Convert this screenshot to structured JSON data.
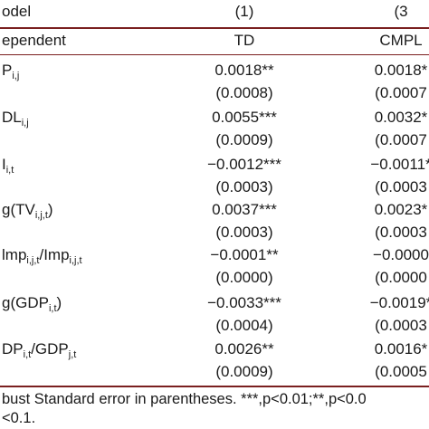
{
  "table": {
    "header": [
      "odel",
      "(1)",
      "(3"
    ],
    "subheader": [
      "ependent",
      "TD",
      "CMPL"
    ],
    "rows": [
      {
        "label": [
          {
            "t": "P"
          },
          {
            "s": "i,j"
          }
        ],
        "coef": [
          "0.0018**",
          "0.0018*"
        ],
        "se": [
          "(0.0008)",
          "(0.0007"
        ]
      },
      {
        "label": [
          {
            "t": "DL"
          },
          {
            "s": "i,j"
          }
        ],
        "coef": [
          "0.0055***",
          "0.0032*"
        ],
        "se": [
          "(0.0009)",
          "(0.0007"
        ]
      },
      {
        "label": [
          {
            "t": "I"
          },
          {
            "s": "i,t"
          }
        ],
        "coef": [
          "−0.0012***",
          "−0.0011*"
        ],
        "se": [
          "(0.0003)",
          "(0.0003"
        ]
      },
      {
        "label": [
          {
            "t": "g(TV"
          },
          {
            "s": "i,j,t"
          },
          {
            "t": ")"
          }
        ],
        "coef": [
          "0.0037***",
          "0.0023*"
        ],
        "se": [
          "(0.0003)",
          "(0.0003"
        ]
      },
      {
        "label": [
          {
            "t": "lmp"
          },
          {
            "s": "i,j,t"
          },
          {
            "t": "/Imp"
          },
          {
            "s": "i,j,t"
          }
        ],
        "coef": [
          "−0.0001**",
          "−0.0000"
        ],
        "se": [
          "(0.0000)",
          "(0.0000"
        ]
      },
      {
        "label": [
          {
            "t": "g(GDP"
          },
          {
            "s": "i,t"
          },
          {
            "t": ")"
          }
        ],
        "coef": [
          "−0.0033***",
          "−0.0019*"
        ],
        "se": [
          "(0.0004)",
          "(0.0003"
        ]
      },
      {
        "label": [
          {
            "t": "DP"
          },
          {
            "s": "i,t"
          },
          {
            "t": "/GDP"
          },
          {
            "s": "j,t"
          }
        ],
        "coef": [
          "0.0026**",
          "0.0016*"
        ],
        "se": [
          "(0.0009)",
          "(0.0005"
        ]
      }
    ]
  },
  "footnote": [
    "bust Standard error in parentheses. ***,p<0.01;**,p<0.0",
    "<0.1."
  ]
}
